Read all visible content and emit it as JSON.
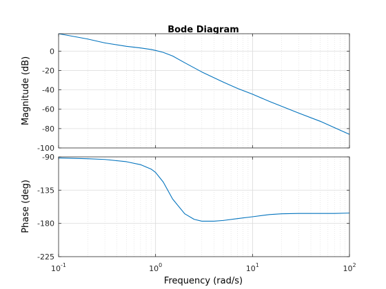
{
  "chart_data": {
    "type": "line",
    "title": "Bode Diagram",
    "xlabel": "Frequency  (rad/s)",
    "xscale": "log",
    "xlim": [
      0.1,
      100
    ],
    "x_ticks": [
      0.1,
      1,
      10,
      100
    ],
    "x_tick_labels": [
      {
        "base": "10",
        "exp": "-1"
      },
      {
        "base": "10",
        "exp": "0"
      },
      {
        "base": "10",
        "exp": "1"
      },
      {
        "base": "10",
        "exp": "2"
      }
    ],
    "grid": true,
    "line_color": "#0072BD",
    "panels": [
      {
        "name": "magnitude",
        "ylabel": "Magnitude (dB)",
        "ylim": [
          -100,
          18
        ],
        "y_ticks": [
          0,
          -20,
          -40,
          -60,
          -80,
          -100
        ],
        "y_tick_labels": [
          "0",
          "-20",
          "-40",
          "-60",
          "-80",
          "-100"
        ],
        "series": [
          {
            "x": [
              0.1,
              0.15,
              0.2,
              0.3,
              0.5,
              0.7,
              0.9,
              1.0,
              1.2,
              1.5,
              2,
              3,
              5,
              7,
              10,
              15,
              20,
              30,
              50,
              70,
              100
            ],
            "y": [
              18.0,
              14.8,
              12.5,
              8.5,
              5.0,
              3.3,
              1.7,
              0.7,
              -1.3,
              -5.0,
              -12.0,
              -21.5,
              -32.0,
              -38.5,
              -44.5,
              -52.0,
              -57.0,
              -64.0,
              -72.5,
              -79.0,
              -86.0
            ]
          }
        ]
      },
      {
        "name": "phase",
        "ylabel": "Phase (deg)",
        "ylim": [
          -225,
          -90
        ],
        "y_ticks": [
          -90,
          -135,
          -180,
          -225
        ],
        "y_tick_labels": [
          "-90",
          "-135",
          "-180",
          "-225"
        ],
        "series": [
          {
            "x": [
              0.1,
              0.2,
              0.3,
              0.5,
              0.7,
              0.9,
              1.0,
              1.2,
              1.5,
              2,
              2.5,
              3,
              4,
              5,
              7,
              10,
              15,
              20,
              30,
              50,
              70,
              100
            ],
            "y": [
              -91.5,
              -92.5,
              -93.5,
              -96.5,
              -100.5,
              -106.5,
              -111.0,
              -124.0,
              -147.0,
              -167.0,
              -174.5,
              -177.0,
              -177.0,
              -176.0,
              -173.5,
              -171.0,
              -168.0,
              -167.0,
              -166.5,
              -166.5,
              -166.5,
              -166.0
            ]
          }
        ]
      }
    ]
  }
}
